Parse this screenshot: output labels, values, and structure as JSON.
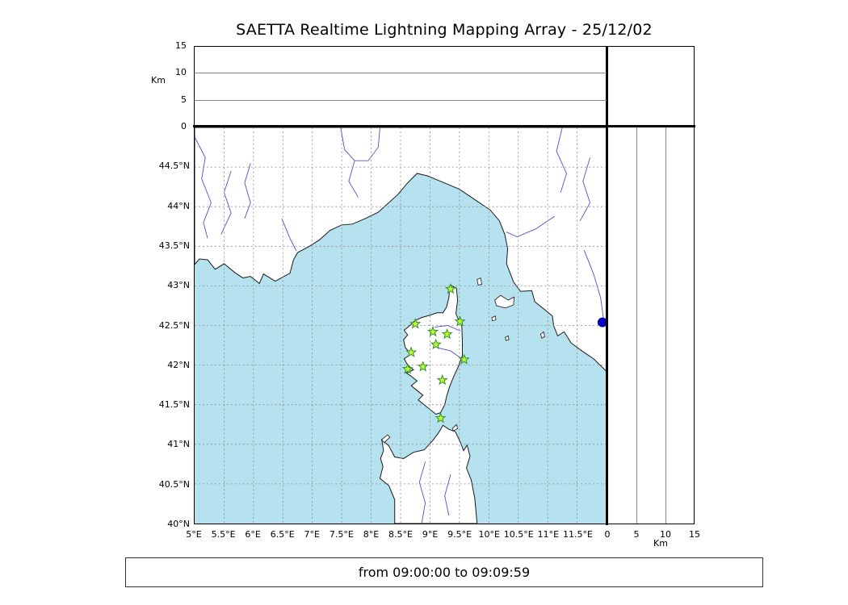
{
  "title": "SAETTA Realtime Lightning Mapping Array - 25/12/02",
  "footer": {
    "text": "from 09:00:00 to 09:09:59"
  },
  "colors": {
    "sea": "#b5e2ee",
    "land": "#ffffff",
    "coast": "#1a1a1a",
    "river": "#5050c8",
    "grid": "#8a8a8a",
    "star_fill": "#bfff30",
    "star_stroke": "#2f8f2f",
    "event_dot": "#0000bb",
    "frame": "#000000"
  },
  "map": {
    "extent": {
      "lon_min": 5,
      "lon_max": 12,
      "lat_min": 40,
      "lat_max": 45
    },
    "grid_step": 0.5,
    "lon_ticks": [
      {
        "value": 5,
        "label": "5°E"
      },
      {
        "value": 5.5,
        "label": "5.5°E"
      },
      {
        "value": 6,
        "label": "6°E"
      },
      {
        "value": 6.5,
        "label": "6.5°E"
      },
      {
        "value": 7,
        "label": "7°E"
      },
      {
        "value": 7.5,
        "label": "7.5°E"
      },
      {
        "value": 8,
        "label": "8°E"
      },
      {
        "value": 8.5,
        "label": "8.5°E"
      },
      {
        "value": 9,
        "label": "9°E"
      },
      {
        "value": 9.5,
        "label": "9.5°E"
      },
      {
        "value": 10,
        "label": "10°E"
      },
      {
        "value": 10.5,
        "label": "10.5°E"
      },
      {
        "value": 11,
        "label": "11°E"
      },
      {
        "value": 11.5,
        "label": "11.5°E"
      }
    ],
    "lat_ticks": [
      {
        "value": 44.5,
        "label": "44.5°N"
      },
      {
        "value": 44,
        "label": "44°N"
      },
      {
        "value": 43.5,
        "label": "43.5°N"
      },
      {
        "value": 43,
        "label": "43°N"
      },
      {
        "value": 42.5,
        "label": "42.5°N"
      },
      {
        "value": 42,
        "label": "42°N"
      },
      {
        "value": 41.5,
        "label": "41.5°N"
      },
      {
        "value": 41,
        "label": "41°N"
      },
      {
        "value": 40.5,
        "label": "40.5°N"
      },
      {
        "value": 40,
        "label": "40°N"
      }
    ]
  },
  "altitude_axis": {
    "label": "Km",
    "max": 15,
    "ticks": [
      {
        "value": 0,
        "label": "0"
      },
      {
        "value": 5,
        "label": "5"
      },
      {
        "value": 10,
        "label": "10"
      },
      {
        "value": 15,
        "label": "15"
      }
    ],
    "gridlines": [
      5,
      10
    ]
  },
  "stations": [
    {
      "lon": 9.35,
      "lat": 42.96
    },
    {
      "lon": 8.75,
      "lat": 42.52
    },
    {
      "lon": 9.05,
      "lat": 42.42
    },
    {
      "lon": 9.29,
      "lat": 42.39
    },
    {
      "lon": 9.51,
      "lat": 42.55
    },
    {
      "lon": 9.1,
      "lat": 42.26
    },
    {
      "lon": 8.68,
      "lat": 42.16
    },
    {
      "lon": 8.88,
      "lat": 41.98
    },
    {
      "lon": 8.62,
      "lat": 41.95
    },
    {
      "lon": 9.58,
      "lat": 42.07
    },
    {
      "lon": 9.21,
      "lat": 41.81
    },
    {
      "lon": 9.18,
      "lat": 41.33
    }
  ],
  "events": [
    {
      "lon": 11.93,
      "lat": 42.54
    }
  ],
  "geometry": {
    "land": [
      [
        [
          5.0,
          43.27
        ],
        [
          5.08,
          43.34
        ],
        [
          5.22,
          43.33
        ],
        [
          5.35,
          43.21
        ],
        [
          5.5,
          43.28
        ],
        [
          5.68,
          43.17
        ],
        [
          5.82,
          43.1
        ],
        [
          5.95,
          43.12
        ],
        [
          6.1,
          43.03
        ],
        [
          6.17,
          43.15
        ],
        [
          6.37,
          43.06
        ],
        [
          6.62,
          43.16
        ],
        [
          6.68,
          43.33
        ],
        [
          6.75,
          43.42
        ],
        [
          6.95,
          43.5
        ],
        [
          7.12,
          43.58
        ],
        [
          7.3,
          43.7
        ],
        [
          7.5,
          43.77
        ],
        [
          7.68,
          43.78
        ],
        [
          7.9,
          43.85
        ],
        [
          8.12,
          43.93
        ],
        [
          8.45,
          44.15
        ],
        [
          8.62,
          44.3
        ],
        [
          8.78,
          44.42
        ],
        [
          8.95,
          44.39
        ],
        [
          9.15,
          44.33
        ],
        [
          9.5,
          44.22
        ],
        [
          9.82,
          44.06
        ],
        [
          10.02,
          43.96
        ],
        [
          10.18,
          43.82
        ],
        [
          10.27,
          43.65
        ],
        [
          10.32,
          43.47
        ],
        [
          10.3,
          43.28
        ],
        [
          10.42,
          43.05
        ],
        [
          10.54,
          42.93
        ],
        [
          10.73,
          42.94
        ],
        [
          10.78,
          42.8
        ],
        [
          10.95,
          42.7
        ],
        [
          11.08,
          42.62
        ],
        [
          11.1,
          42.5
        ],
        [
          11.17,
          42.37
        ],
        [
          11.28,
          42.42
        ],
        [
          11.4,
          42.28
        ],
        [
          11.58,
          42.18
        ],
        [
          11.78,
          42.08
        ],
        [
          12.0,
          41.92
        ],
        [
          12.0,
          45.0
        ],
        [
          5.0,
          45.0
        ]
      ],
      [
        [
          9.35,
          43.01
        ],
        [
          9.45,
          42.97
        ],
        [
          9.47,
          42.82
        ],
        [
          9.44,
          42.65
        ],
        [
          9.48,
          42.58
        ],
        [
          9.54,
          42.5
        ],
        [
          9.55,
          42.3
        ],
        [
          9.55,
          42.12
        ],
        [
          9.48,
          41.98
        ],
        [
          9.4,
          41.85
        ],
        [
          9.33,
          41.72
        ],
        [
          9.28,
          41.6
        ],
        [
          9.25,
          41.5
        ],
        [
          9.18,
          41.4
        ],
        [
          9.1,
          41.38
        ],
        [
          9.0,
          41.44
        ],
        [
          8.9,
          41.5
        ],
        [
          8.8,
          41.56
        ],
        [
          8.88,
          41.62
        ],
        [
          8.78,
          41.68
        ],
        [
          8.68,
          41.74
        ],
        [
          8.78,
          41.8
        ],
        [
          8.68,
          41.86
        ],
        [
          8.6,
          41.9
        ],
        [
          8.72,
          41.94
        ],
        [
          8.62,
          42.0
        ],
        [
          8.56,
          42.08
        ],
        [
          8.68,
          42.14
        ],
        [
          8.58,
          42.22
        ],
        [
          8.55,
          42.32
        ],
        [
          8.62,
          42.38
        ],
        [
          8.56,
          42.44
        ],
        [
          8.66,
          42.5
        ],
        [
          8.74,
          42.56
        ],
        [
          8.86,
          42.6
        ],
        [
          9.0,
          42.63
        ],
        [
          9.12,
          42.66
        ],
        [
          9.22,
          42.66
        ],
        [
          9.28,
          42.73
        ],
        [
          9.32,
          42.85
        ],
        [
          9.33,
          42.93
        ]
      ],
      [
        [
          8.4,
          40.0
        ],
        [
          8.4,
          40.3
        ],
        [
          8.3,
          40.48
        ],
        [
          8.15,
          40.57
        ],
        [
          8.2,
          40.72
        ],
        [
          8.16,
          40.82
        ],
        [
          8.21,
          40.92
        ],
        [
          8.18,
          41.06
        ],
        [
          8.3,
          40.98
        ],
        [
          8.4,
          40.84
        ],
        [
          8.55,
          40.82
        ],
        [
          8.72,
          40.9
        ],
        [
          8.9,
          40.93
        ],
        [
          9.05,
          41.05
        ],
        [
          9.15,
          41.15
        ],
        [
          9.22,
          41.24
        ],
        [
          9.32,
          41.19
        ],
        [
          9.43,
          41.16
        ],
        [
          9.52,
          41.02
        ],
        [
          9.57,
          40.92
        ],
        [
          9.63,
          40.99
        ],
        [
          9.68,
          40.85
        ],
        [
          9.62,
          40.7
        ],
        [
          9.7,
          40.55
        ],
        [
          9.76,
          40.32
        ],
        [
          9.8,
          40.0
        ]
      ]
    ],
    "islands": [
      [
        [
          8.22,
          41.02
        ],
        [
          8.32,
          41.09
        ],
        [
          8.28,
          41.12
        ],
        [
          8.18,
          41.06
        ]
      ],
      [
        [
          9.38,
          41.2
        ],
        [
          9.45,
          41.25
        ],
        [
          9.47,
          41.2
        ],
        [
          9.4,
          41.17
        ]
      ],
      [
        [
          10.1,
          42.82
        ],
        [
          10.2,
          42.88
        ],
        [
          10.33,
          42.82
        ],
        [
          10.43,
          42.86
        ],
        [
          10.42,
          42.76
        ],
        [
          10.28,
          42.72
        ],
        [
          10.13,
          42.75
        ]
      ],
      [
        [
          9.8,
          43.08
        ],
        [
          9.86,
          43.1
        ],
        [
          9.88,
          43.02
        ],
        [
          9.82,
          43.01
        ]
      ],
      [
        [
          10.05,
          42.6
        ],
        [
          10.11,
          42.62
        ],
        [
          10.12,
          42.57
        ],
        [
          10.06,
          42.56
        ]
      ],
      [
        [
          10.28,
          42.35
        ],
        [
          10.33,
          42.37
        ],
        [
          10.34,
          42.32
        ],
        [
          10.29,
          42.31
        ]
      ],
      [
        [
          10.88,
          42.39
        ],
        [
          10.93,
          42.42
        ],
        [
          10.95,
          42.36
        ],
        [
          10.9,
          42.34
        ]
      ]
    ],
    "rivers": [
      [
        [
          5.0,
          44.88
        ],
        [
          5.18,
          44.62
        ],
        [
          5.12,
          44.35
        ],
        [
          5.28,
          44.05
        ],
        [
          5.15,
          43.8
        ],
        [
          5.22,
          43.6
        ]
      ],
      [
        [
          5.62,
          44.45
        ],
        [
          5.5,
          44.18
        ],
        [
          5.62,
          43.92
        ],
        [
          5.45,
          43.65
        ]
      ],
      [
        [
          5.95,
          44.55
        ],
        [
          5.85,
          44.3
        ],
        [
          5.95,
          44.05
        ],
        [
          5.85,
          43.85
        ]
      ],
      [
        [
          7.48,
          45.0
        ],
        [
          7.55,
          44.72
        ],
        [
          7.72,
          44.58
        ],
        [
          7.95,
          44.58
        ],
        [
          8.12,
          44.75
        ],
        [
          8.15,
          45.0
        ]
      ],
      [
        [
          7.72,
          44.58
        ],
        [
          7.62,
          44.32
        ],
        [
          7.78,
          44.12
        ]
      ],
      [
        [
          11.25,
          45.0
        ],
        [
          11.15,
          44.7
        ],
        [
          11.32,
          44.42
        ],
        [
          11.22,
          44.18
        ]
      ],
      [
        [
          11.72,
          44.62
        ],
        [
          11.6,
          44.32
        ],
        [
          11.72,
          44.05
        ],
        [
          11.55,
          43.82
        ]
      ],
      [
        [
          11.12,
          43.88
        ],
        [
          10.8,
          43.72
        ],
        [
          10.48,
          43.62
        ],
        [
          10.3,
          43.68
        ]
      ],
      [
        [
          11.62,
          43.45
        ],
        [
          11.78,
          43.15
        ],
        [
          11.9,
          42.85
        ],
        [
          11.95,
          42.58
        ]
      ],
      [
        [
          6.48,
          43.85
        ],
        [
          6.62,
          43.6
        ],
        [
          6.73,
          43.44
        ]
      ],
      [
        [
          9.08,
          42.48
        ],
        [
          9.3,
          42.5
        ],
        [
          9.52,
          42.43
        ]
      ],
      [
        [
          9.12,
          42.22
        ],
        [
          9.35,
          42.18
        ],
        [
          9.54,
          42.08
        ]
      ],
      [
        [
          8.92,
          40.78
        ],
        [
          8.82,
          40.52
        ],
        [
          8.92,
          40.26
        ],
        [
          8.86,
          40.0
        ]
      ],
      [
        [
          9.35,
          40.62
        ],
        [
          9.25,
          40.35
        ],
        [
          9.32,
          40.1
        ]
      ]
    ]
  }
}
